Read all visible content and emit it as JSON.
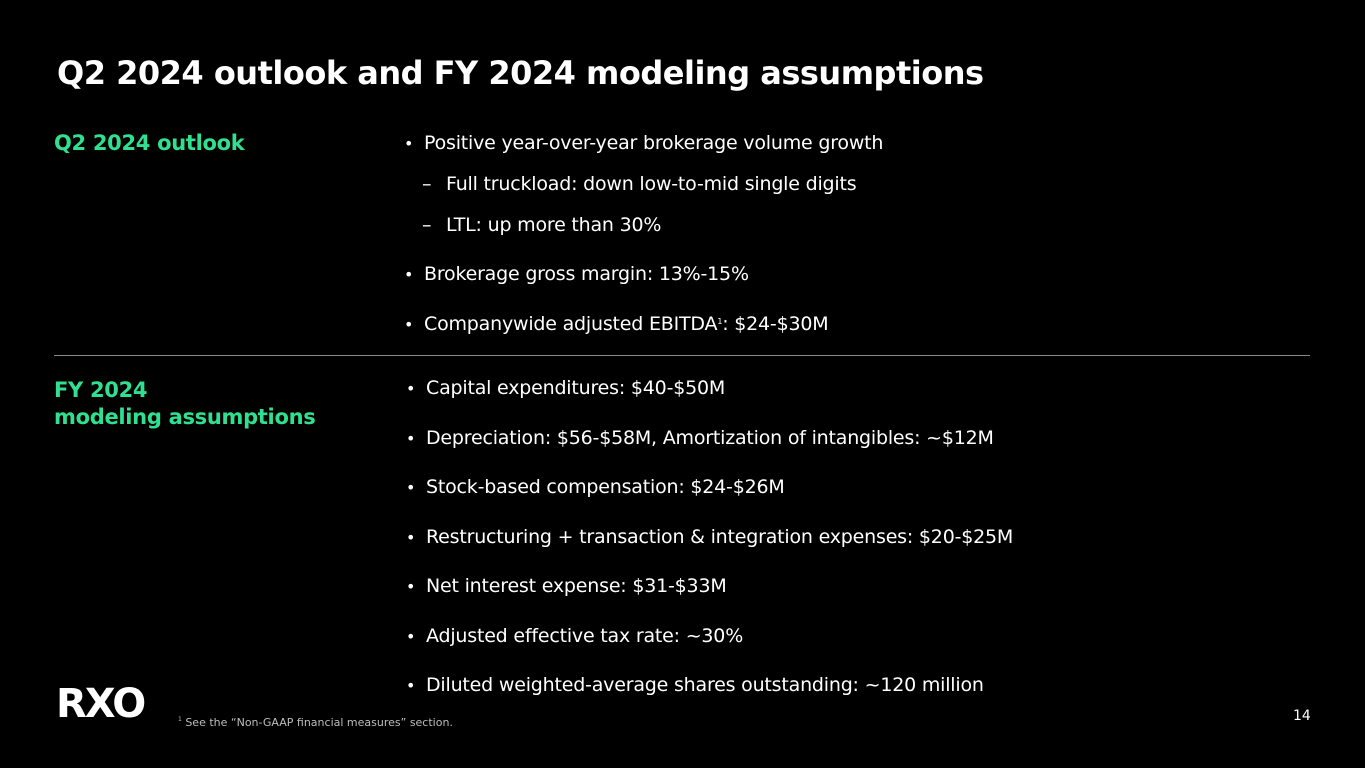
{
  "title": "Q2 2024 outlook and FY 2024 modeling assumptions",
  "accent_color": "#2ee08f",
  "sections": {
    "q2": {
      "label": "Q2 2024 outlook",
      "bullets": [
        "Positive year-over-year brokerage volume growth",
        "Brokerage gross margin: 13%-15%",
        "Companywide adjusted EBITDA",
        ": $24-$30M"
      ],
      "sub_bullets": [
        "Full truckload: down low-to-mid single digits",
        "LTL: up more than 30%"
      ],
      "footnote_marker": "1"
    },
    "fy": {
      "label_line1": "FY 2024",
      "label_line2": "modeling assumptions",
      "bullets": [
        "Capital expenditures: $40-$50M",
        "Depreciation: $56-$58M, Amortization of intangibles: ~$12M",
        "Stock-based compensation: $24-$26M",
        "Restructuring + transaction & integration expenses: $20-$25M",
        "Net interest expense: $31-$33M",
        "Adjusted effective tax rate: ~30%",
        "Diluted weighted-average shares outstanding: ~120 million"
      ]
    }
  },
  "bullet_char": "•",
  "dash_char": "–",
  "logo_text": "RXO",
  "footnote": {
    "marker": "1",
    "text": "See the “Non-GAAP financial measures” section."
  },
  "page_number": "14"
}
